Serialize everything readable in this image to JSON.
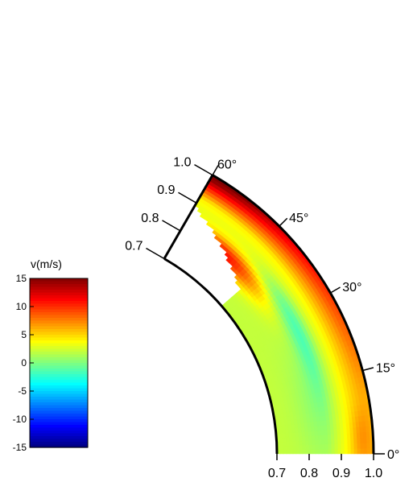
{
  "chart_data": {
    "type": "heatmap",
    "projection": "polar-wedge",
    "radius_ticks": [
      "0.7",
      "0.8",
      "0.9",
      "1.0"
    ],
    "radius_tick_values": [
      0.7,
      0.8,
      0.9,
      1.0
    ],
    "radius_range": [
      0.7,
      1.0
    ],
    "angle_ticks": [
      "0°",
      "15°",
      "30°",
      "45°",
      "60°"
    ],
    "angle_tick_values": [
      0,
      15,
      30,
      45,
      60
    ],
    "angle_range": [
      0,
      60
    ],
    "colorbar": {
      "title": "v(m/s)",
      "ticks": [
        "15",
        "10",
        "5",
        "0",
        "-5",
        "-10",
        "-15"
      ],
      "tick_values": [
        15,
        10,
        5,
        0,
        -5,
        -10,
        -15
      ],
      "range": [
        -15,
        15
      ],
      "colormap": "jet",
      "colors": [
        "#00007f",
        "#0000ff",
        "#007fff",
        "#00ffff",
        "#7fff7f",
        "#ffff00",
        "#ff7f00",
        "#ff0000",
        "#7f0000"
      ]
    },
    "field_description": [
      {
        "region": "outer boundary r>0.95, 20°-60°",
        "v_range": [
          9,
          14
        ]
      },
      {
        "region": "outer boundary r>0.95, 0°-15°",
        "v_range": [
          4,
          8
        ]
      },
      {
        "region": "mid-latitude inner band r~0.8-0.85, 38°-58°",
        "v_range": [
          8,
          11
        ]
      },
      {
        "region": "interior channel r~0.82-0.85, 15°-40°",
        "v_range": [
          -1,
          1
        ]
      },
      {
        "region": "equatorial interior r<0.85, 0°-15°",
        "v_range": [
          1,
          3
        ]
      },
      {
        "region": "tangent-cylinder gap near inner wall, angle>55°",
        "v_range": [
          null,
          null
        ]
      }
    ]
  }
}
